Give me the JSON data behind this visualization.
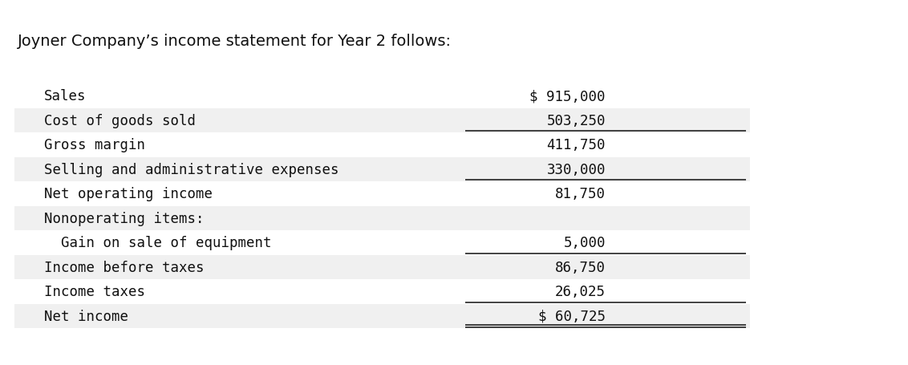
{
  "title": "Joyner Company’s income statement for Year 2 follows:",
  "title_font": "DejaVu Sans",
  "title_fontsize": 14,
  "mono_font": "DejaVu Sans Mono",
  "mono_fontsize": 12.5,
  "background_color": "#ffffff",
  "stripe_color": "#f0f0f0",
  "rows": [
    {
      "label": "Sales",
      "value": "$ 915,000",
      "stripe": false,
      "underline_below": false,
      "double_underline": false
    },
    {
      "label": "Cost of goods sold",
      "value": "503,250",
      "stripe": true,
      "underline_below": true,
      "double_underline": false
    },
    {
      "label": "Gross margin",
      "value": "411,750",
      "stripe": false,
      "underline_below": false,
      "double_underline": false
    },
    {
      "label": "Selling and administrative expenses",
      "value": "330,000",
      "stripe": true,
      "underline_below": true,
      "double_underline": false
    },
    {
      "label": "Net operating income",
      "value": "81,750",
      "stripe": false,
      "underline_below": false,
      "double_underline": false
    },
    {
      "label": "Nonoperating items:",
      "value": "",
      "stripe": true,
      "underline_below": false,
      "double_underline": false
    },
    {
      "label": "  Gain on sale of equipment",
      "value": "5,000",
      "stripe": false,
      "underline_below": true,
      "double_underline": false
    },
    {
      "label": "Income before taxes",
      "value": "86,750",
      "stripe": true,
      "underline_below": false,
      "double_underline": false
    },
    {
      "label": "Income taxes",
      "value": "26,025",
      "stripe": false,
      "underline_below": true,
      "double_underline": false
    },
    {
      "label": "Net income",
      "value": "$ 60,725",
      "stripe": true,
      "underline_below": false,
      "double_underline": true
    }
  ]
}
